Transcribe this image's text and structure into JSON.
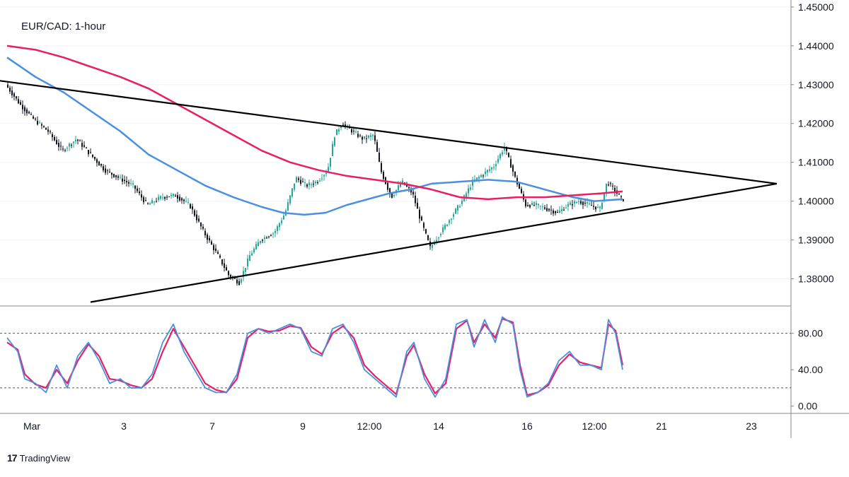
{
  "chart_data": {
    "type": "candlestick",
    "title": "EUR/CAD: 1-hour",
    "colors": {
      "up": "#26a69a",
      "down": "#131722",
      "sma_fast": "#4a90e2",
      "sma_slow": "#e91e63",
      "trendline": "#000000",
      "stoch_k": "#4a90e2",
      "stoch_d": "#e91e63"
    },
    "price_axis": {
      "ticks": [
        "1.45000",
        "1.44000",
        "1.43000",
        "1.42000",
        "1.41000",
        "1.40000",
        "1.39000",
        "1.38000"
      ],
      "ylim": [
        1.373,
        1.4518
      ]
    },
    "time_axis": {
      "ticks": [
        "Mar",
        "3",
        "7",
        "9",
        "12:00",
        "14",
        "16",
        "12:00",
        "21",
        "23"
      ]
    },
    "price_path": [
      [
        0,
        1.43
      ],
      [
        20,
        1.425
      ],
      [
        40,
        1.421
      ],
      [
        60,
        1.418
      ],
      [
        80,
        1.413
      ],
      [
        100,
        1.416
      ],
      [
        120,
        1.412
      ],
      [
        140,
        1.408
      ],
      [
        160,
        1.406
      ],
      [
        180,
        1.404
      ],
      [
        200,
        1.399
      ],
      [
        220,
        1.401
      ],
      [
        240,
        1.4015
      ],
      [
        260,
        1.399
      ],
      [
        280,
        1.392
      ],
      [
        300,
        1.386
      ],
      [
        315,
        1.381
      ],
      [
        330,
        1.379
      ],
      [
        345,
        1.386
      ],
      [
        360,
        1.39
      ],
      [
        380,
        1.392
      ],
      [
        395,
        1.397
      ],
      [
        410,
        1.406
      ],
      [
        425,
        1.404
      ],
      [
        440,
        1.405
      ],
      [
        455,
        1.408
      ],
      [
        465,
        1.417
      ],
      [
        475,
        1.42
      ],
      [
        490,
        1.418
      ],
      [
        505,
        1.416
      ],
      [
        520,
        1.417
      ],
      [
        530,
        1.408
      ],
      [
        545,
        1.401
      ],
      [
        560,
        1.405
      ],
      [
        575,
        1.402
      ],
      [
        585,
        1.396
      ],
      [
        600,
        1.388
      ],
      [
        615,
        1.392
      ],
      [
        630,
        1.396
      ],
      [
        645,
        1.4
      ],
      [
        660,
        1.405
      ],
      [
        675,
        1.407
      ],
      [
        690,
        1.409
      ],
      [
        705,
        1.414
      ],
      [
        720,
        1.406
      ],
      [
        735,
        1.399
      ],
      [
        750,
        1.399
      ],
      [
        765,
        1.398
      ],
      [
        780,
        1.397
      ],
      [
        795,
        1.399
      ],
      [
        810,
        1.4
      ],
      [
        825,
        1.399
      ],
      [
        840,
        1.398
      ],
      [
        850,
        1.405
      ],
      [
        860,
        1.403
      ],
      [
        870,
        1.4005
      ]
    ],
    "sma_fast": [
      [
        0,
        1.437
      ],
      [
        40,
        1.432
      ],
      [
        80,
        1.428
      ],
      [
        120,
        1.423
      ],
      [
        160,
        1.418
      ],
      [
        200,
        1.412
      ],
      [
        240,
        1.408
      ],
      [
        280,
        1.404
      ],
      [
        320,
        1.401
      ],
      [
        360,
        1.3985
      ],
      [
        390,
        1.397
      ],
      [
        420,
        1.3965
      ],
      [
        450,
        1.397
      ],
      [
        480,
        1.399
      ],
      [
        510,
        1.4005
      ],
      [
        540,
        1.402
      ],
      [
        570,
        1.403
      ],
      [
        600,
        1.4045
      ],
      [
        640,
        1.405
      ],
      [
        680,
        1.4055
      ],
      [
        720,
        1.405
      ],
      [
        740,
        1.404
      ],
      [
        760,
        1.403
      ],
      [
        780,
        1.402
      ],
      [
        800,
        1.401
      ],
      [
        830,
        1.4
      ],
      [
        870,
        1.4005
      ]
    ],
    "sma_slow": [
      [
        0,
        1.44
      ],
      [
        40,
        1.439
      ],
      [
        80,
        1.437
      ],
      [
        120,
        1.4345
      ],
      [
        160,
        1.432
      ],
      [
        200,
        1.429
      ],
      [
        240,
        1.425
      ],
      [
        280,
        1.421
      ],
      [
        320,
        1.417
      ],
      [
        360,
        1.413
      ],
      [
        400,
        1.41
      ],
      [
        440,
        1.408
      ],
      [
        480,
        1.4065
      ],
      [
        520,
        1.4055
      ],
      [
        560,
        1.4045
      ],
      [
        600,
        1.403
      ],
      [
        640,
        1.401
      ],
      [
        680,
        1.4005
      ],
      [
        720,
        1.401
      ],
      [
        760,
        1.401
      ],
      [
        800,
        1.4015
      ],
      [
        840,
        1.402
      ],
      [
        870,
        1.4025
      ]
    ],
    "trendlines": [
      {
        "from": [
          0,
          1.431
        ],
        "to": [
          1098,
          1.4045
        ]
      },
      {
        "from": [
          128,
          1.374
        ],
        "to": [
          1098,
          1.4045
        ]
      }
    ],
    "oscillator": {
      "ticks": [
        "80.00",
        "40.00",
        "0.00"
      ],
      "levels": [
        80,
        20
      ],
      "ylim": [
        -8,
        110
      ],
      "k_path": [
        [
          0,
          75
        ],
        [
          15,
          60
        ],
        [
          25,
          30
        ],
        [
          40,
          25
        ],
        [
          55,
          15
        ],
        [
          70,
          45
        ],
        [
          85,
          20
        ],
        [
          100,
          55
        ],
        [
          115,
          70
        ],
        [
          130,
          50
        ],
        [
          145,
          25
        ],
        [
          160,
          30
        ],
        [
          175,
          20
        ],
        [
          190,
          20
        ],
        [
          205,
          35
        ],
        [
          220,
          70
        ],
        [
          235,
          90
        ],
        [
          250,
          60
        ],
        [
          265,
          40
        ],
        [
          280,
          20
        ],
        [
          295,
          15
        ],
        [
          310,
          15
        ],
        [
          325,
          35
        ],
        [
          340,
          80
        ],
        [
          355,
          85
        ],
        [
          370,
          80
        ],
        [
          385,
          85
        ],
        [
          400,
          90
        ],
        [
          415,
          85
        ],
        [
          430,
          60
        ],
        [
          445,
          55
        ],
        [
          460,
          85
        ],
        [
          475,
          90
        ],
        [
          490,
          70
        ],
        [
          505,
          40
        ],
        [
          520,
          30
        ],
        [
          535,
          20
        ],
        [
          550,
          10
        ],
        [
          565,
          60
        ],
        [
          575,
          70
        ],
        [
          590,
          30
        ],
        [
          605,
          10
        ],
        [
          620,
          30
        ],
        [
          635,
          90
        ],
        [
          650,
          95
        ],
        [
          660,
          65
        ],
        [
          675,
          95
        ],
        [
          690,
          70
        ],
        [
          700,
          98
        ],
        [
          715,
          90
        ],
        [
          725,
          40
        ],
        [
          735,
          10
        ],
        [
          750,
          15
        ],
        [
          765,
          25
        ],
        [
          780,
          50
        ],
        [
          795,
          60
        ],
        [
          810,
          45
        ],
        [
          825,
          45
        ],
        [
          840,
          40
        ],
        [
          850,
          95
        ],
        [
          860,
          80
        ],
        [
          870,
          40
        ]
      ],
      "d_path": [
        [
          0,
          70
        ],
        [
          15,
          62
        ],
        [
          25,
          35
        ],
        [
          40,
          24
        ],
        [
          55,
          20
        ],
        [
          70,
          40
        ],
        [
          85,
          25
        ],
        [
          100,
          50
        ],
        [
          115,
          68
        ],
        [
          130,
          55
        ],
        [
          145,
          30
        ],
        [
          160,
          28
        ],
        [
          175,
          23
        ],
        [
          190,
          20
        ],
        [
          205,
          30
        ],
        [
          220,
          60
        ],
        [
          235,
          85
        ],
        [
          250,
          65
        ],
        [
          265,
          45
        ],
        [
          280,
          25
        ],
        [
          295,
          18
        ],
        [
          310,
          15
        ],
        [
          325,
          30
        ],
        [
          340,
          75
        ],
        [
          355,
          85
        ],
        [
          370,
          82
        ],
        [
          385,
          83
        ],
        [
          400,
          88
        ],
        [
          415,
          86
        ],
        [
          430,
          65
        ],
        [
          445,
          57
        ],
        [
          460,
          80
        ],
        [
          475,
          88
        ],
        [
          490,
          75
        ],
        [
          505,
          45
        ],
        [
          520,
          33
        ],
        [
          535,
          23
        ],
        [
          550,
          13
        ],
        [
          565,
          55
        ],
        [
          575,
          67
        ],
        [
          590,
          35
        ],
        [
          605,
          14
        ],
        [
          620,
          25
        ],
        [
          635,
          85
        ],
        [
          650,
          94
        ],
        [
          660,
          70
        ],
        [
          675,
          90
        ],
        [
          690,
          75
        ],
        [
          700,
          96
        ],
        [
          715,
          92
        ],
        [
          725,
          45
        ],
        [
          735,
          12
        ],
        [
          750,
          15
        ],
        [
          765,
          23
        ],
        [
          780,
          45
        ],
        [
          795,
          57
        ],
        [
          810,
          48
        ],
        [
          825,
          45
        ],
        [
          840,
          42
        ],
        [
          850,
          90
        ],
        [
          860,
          83
        ],
        [
          870,
          45
        ]
      ]
    }
  },
  "branding": {
    "logo": "17",
    "name": "TradingView"
  }
}
